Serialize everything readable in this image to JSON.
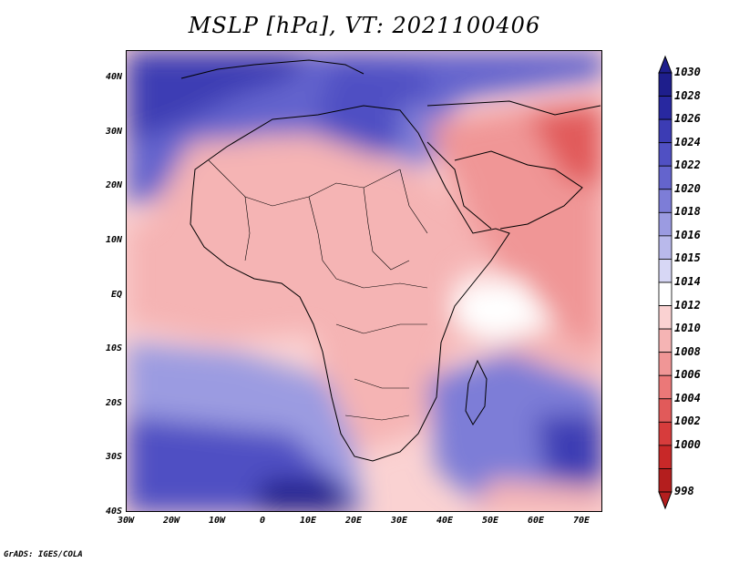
{
  "title": "MSLP [hPa], VT: 2021100406",
  "credit": "GrADS: IGES/COLA",
  "lat_labels": [
    "40N",
    "30N",
    "20N",
    "10N",
    "EQ",
    "10S",
    "20S",
    "30S",
    "40S"
  ],
  "lon_labels": [
    "30W",
    "20W",
    "10W",
    "0",
    "10E",
    "20E",
    "30E",
    "40E",
    "50E",
    "60E",
    "70E"
  ],
  "colorbar": {
    "labels": [
      "1030",
      "1028",
      "1026",
      "1024",
      "1022",
      "1020",
      "1018",
      "1016",
      "1015",
      "1014",
      "1012",
      "1010",
      "1008",
      "1006",
      "1004",
      "1002",
      "1000",
      "998"
    ],
    "colors": [
      "#1e1e8c",
      "#2828a0",
      "#3c3cb4",
      "#5050c3",
      "#6464cd",
      "#7d7dd7",
      "#9b9be1",
      "#b9b9eb",
      "#d7d7f5",
      "#ffffff",
      "#fad2d2",
      "#f5b4b4",
      "#f09696",
      "#eb7878",
      "#e15a5a",
      "#d73c3c",
      "#c82828",
      "#b41e1e"
    ]
  },
  "map_colors": {
    "ocean_high": "#3c3cb4",
    "ocean_mid": "#9b9be1",
    "near_normal": "#fad2d2",
    "low": "#f09696",
    "deep_low": "#e15a5a"
  }
}
